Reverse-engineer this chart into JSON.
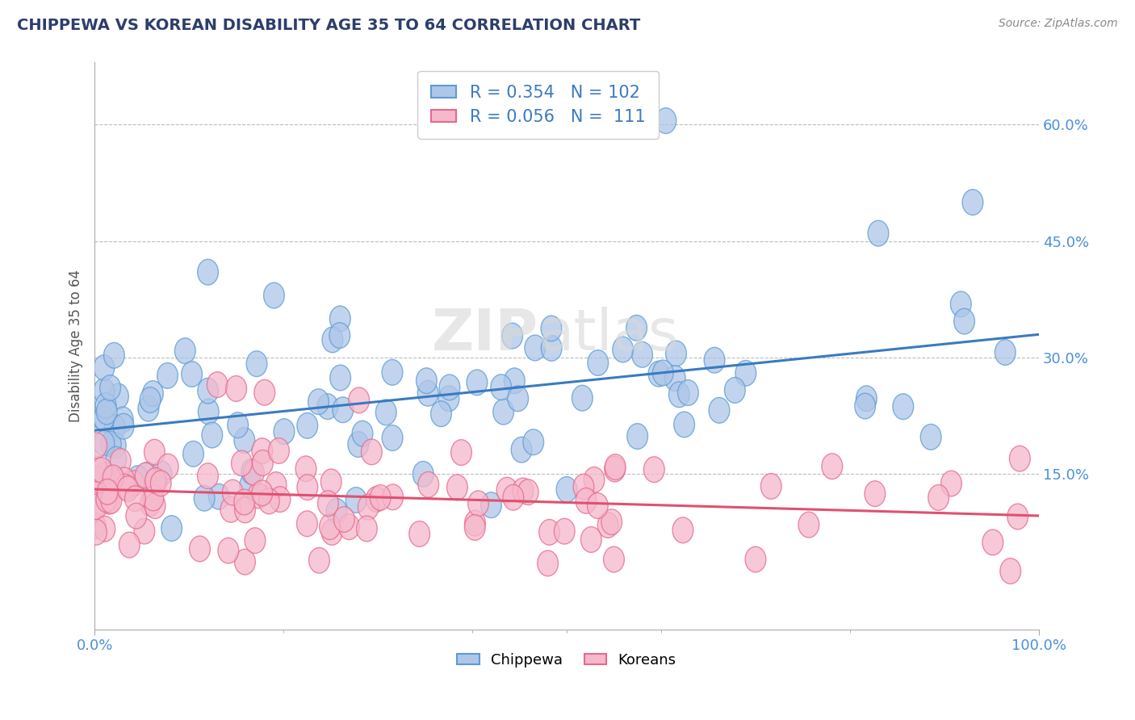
{
  "title": "CHIPPEWA VS KOREAN DISABILITY AGE 35 TO 64 CORRELATION CHART",
  "source": "Source: ZipAtlas.com",
  "ylabel": "Disability Age 35 to 64",
  "xlim": [
    0.0,
    1.0
  ],
  "ylim": [
    -0.05,
    0.68
  ],
  "y_tick_labels": [
    "15.0%",
    "30.0%",
    "45.0%",
    "60.0%"
  ],
  "y_tick_values": [
    0.15,
    0.3,
    0.45,
    0.6
  ],
  "chippewa_R": 0.354,
  "chippewa_N": 102,
  "korean_R": 0.056,
  "korean_N": 111,
  "chippewa_color": "#aec6e8",
  "korean_color": "#f5b8cc",
  "chippewa_edge_color": "#5b9bd5",
  "korean_edge_color": "#e8688a",
  "chippewa_line_color": "#3a7bbf",
  "korean_line_color": "#e05070",
  "legend_border_color": "#cccccc",
  "grid_color": "#bbbbbb",
  "title_color": "#2c3e6b",
  "stat_color": "#3a7bbf",
  "watermark": "ZIPatlas"
}
